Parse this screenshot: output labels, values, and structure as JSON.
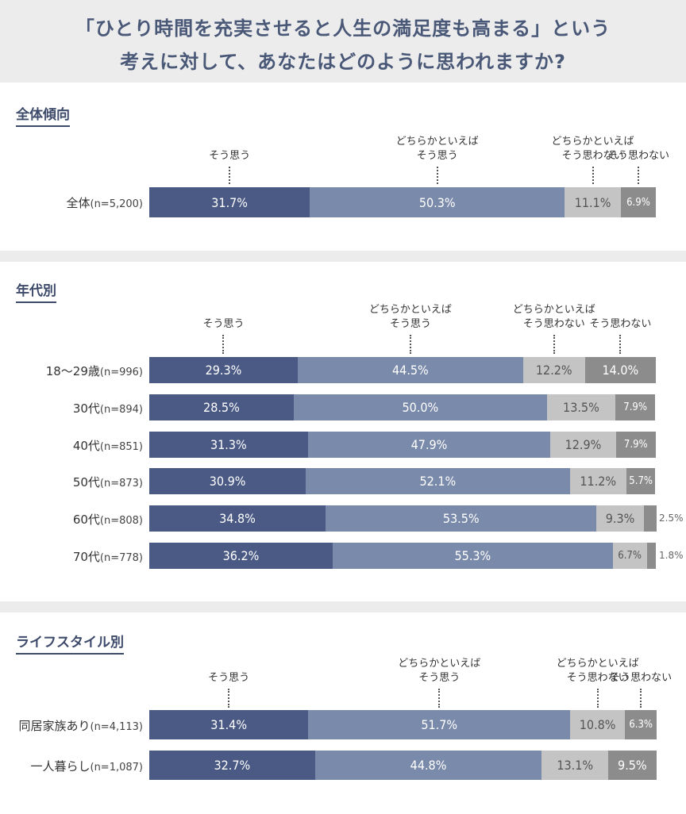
{
  "header": {
    "line1": "「ひとり時間を充実させると人生の満足度も高まる」という",
    "line2": "考えに対して、あなたはどのように思われますか?"
  },
  "chart_data": [
    {
      "type": "bar",
      "orientation": "horizontal",
      "stacked": true,
      "title": "全体傾向",
      "xlim": [
        0,
        100
      ],
      "series_names": [
        "そう思う",
        "どちらかといえば\nそう思う",
        "どちらかといえば\nそう思わない",
        "そう思わない"
      ],
      "colors": [
        "#4a5a85",
        "#7a8aaa",
        "#c4c4c4",
        "#8c8c8c"
      ],
      "rows": [
        {
          "label": "全体",
          "n": "(n=5,200)",
          "values": [
            31.7,
            50.3,
            11.1,
            6.9
          ],
          "labels": [
            "31.7%",
            "50.3%",
            "11.1%",
            "6.9%"
          ]
        }
      ]
    },
    {
      "type": "bar",
      "orientation": "horizontal",
      "stacked": true,
      "title": "年代別",
      "xlim": [
        0,
        100
      ],
      "series_names": [
        "そう思う",
        "どちらかといえば\nそう思う",
        "どちらかといえば\nそう思わない",
        "そう思わない"
      ],
      "colors": [
        "#4a5a85",
        "#7a8aaa",
        "#c4c4c4",
        "#8c8c8c"
      ],
      "rows": [
        {
          "label": "18〜29歳",
          "n": "(n=996)",
          "values": [
            29.3,
            44.5,
            12.2,
            14.0
          ],
          "labels": [
            "29.3%",
            "44.5%",
            "12.2%",
            "14.0%"
          ]
        },
        {
          "label": "30代",
          "n": "(n=894)",
          "values": [
            28.5,
            50.0,
            13.5,
            7.9
          ],
          "labels": [
            "28.5%",
            "50.0%",
            "13.5%",
            "7.9%"
          ]
        },
        {
          "label": "40代",
          "n": "(n=851)",
          "values": [
            31.3,
            47.9,
            12.9,
            7.9
          ],
          "labels": [
            "31.3%",
            "47.9%",
            "12.9%",
            "7.9%"
          ]
        },
        {
          "label": "50代",
          "n": "(n=873)",
          "values": [
            30.9,
            52.1,
            11.2,
            5.7
          ],
          "labels": [
            "30.9%",
            "52.1%",
            "11.2%",
            "5.7%"
          ]
        },
        {
          "label": "60代",
          "n": "(n=808)",
          "values": [
            34.8,
            53.5,
            9.3,
            2.5
          ],
          "labels": [
            "34.8%",
            "53.5%",
            "9.3%",
            "2.5%"
          ]
        },
        {
          "label": "70代",
          "n": "(n=778)",
          "values": [
            36.2,
            55.3,
            6.7,
            1.8
          ],
          "labels": [
            "36.2%",
            "55.3%",
            "6.7%",
            "1.8%"
          ]
        }
      ]
    },
    {
      "type": "bar",
      "orientation": "horizontal",
      "stacked": true,
      "title": "ライフスタイル別",
      "xlim": [
        0,
        100
      ],
      "series_names": [
        "そう思う",
        "どちらかといえば\nそう思う",
        "どちらかといえば\nそう思わない",
        "そう思わない"
      ],
      "colors": [
        "#4a5a85",
        "#7a8aaa",
        "#c4c4c4",
        "#8c8c8c"
      ],
      "rows": [
        {
          "label": "同居家族あり",
          "n": "(n=4,113)",
          "values": [
            31.4,
            51.7,
            10.8,
            6.3
          ],
          "labels": [
            "31.4%",
            "51.7%",
            "10.8%",
            "6.3%"
          ]
        },
        {
          "label": "一人暮らし",
          "n": "(n=1,087)",
          "values": [
            32.7,
            44.8,
            13.1,
            9.5
          ],
          "labels": [
            "32.7%",
            "44.8%",
            "13.1%",
            "9.5%"
          ]
        }
      ]
    }
  ]
}
